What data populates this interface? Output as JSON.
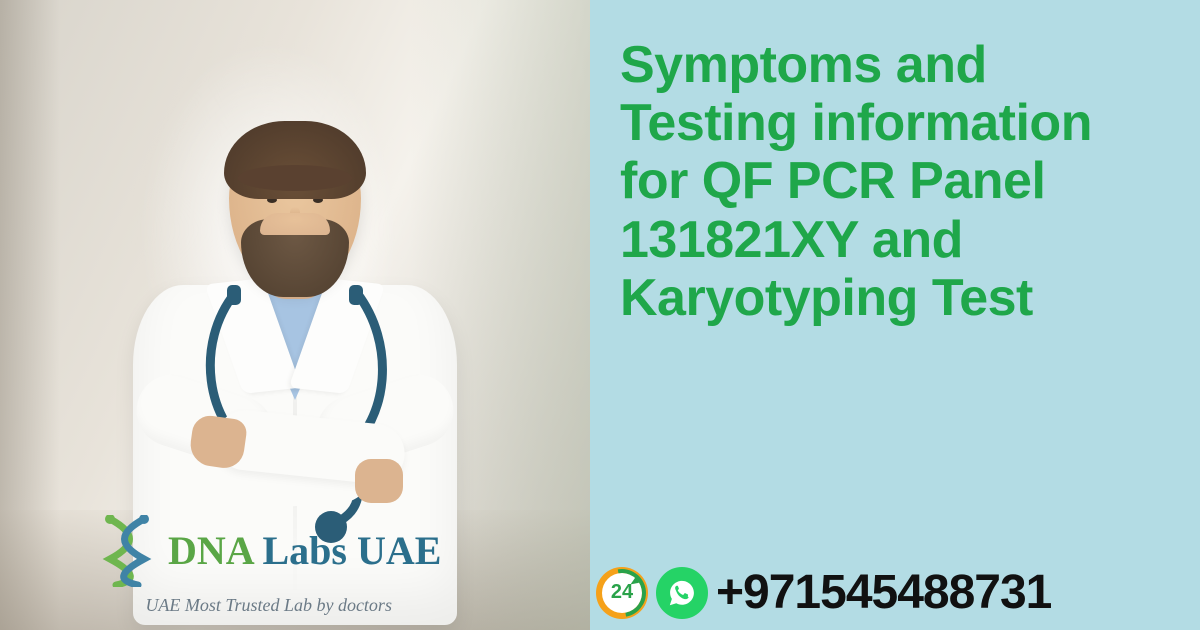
{
  "colors": {
    "right_panel_bg": "#b3dce4",
    "headline": "#1fa74a",
    "brand_top": "#5aa646",
    "brand_bottom": "#2b6f8c",
    "tagline": "#6b7a86",
    "steth": "#2b5d77",
    "badge24_ring": "#f5a11a",
    "badge24_arrow": "#2aa24a",
    "badge24_text": "#2aa24a",
    "whatsapp": "#25d366",
    "phone": "#111111",
    "helix1": "#6fb64f",
    "helix2": "#3f83a6"
  },
  "headline": "Symptoms and Testing information for QF PCR Panel 131821XY and Karyotyping Test",
  "brand": {
    "name": "DNA Labs UAE",
    "tagline": "UAE Most Trusted Lab by doctors"
  },
  "contact": {
    "badge24": "24",
    "phone": "+971545488731"
  }
}
